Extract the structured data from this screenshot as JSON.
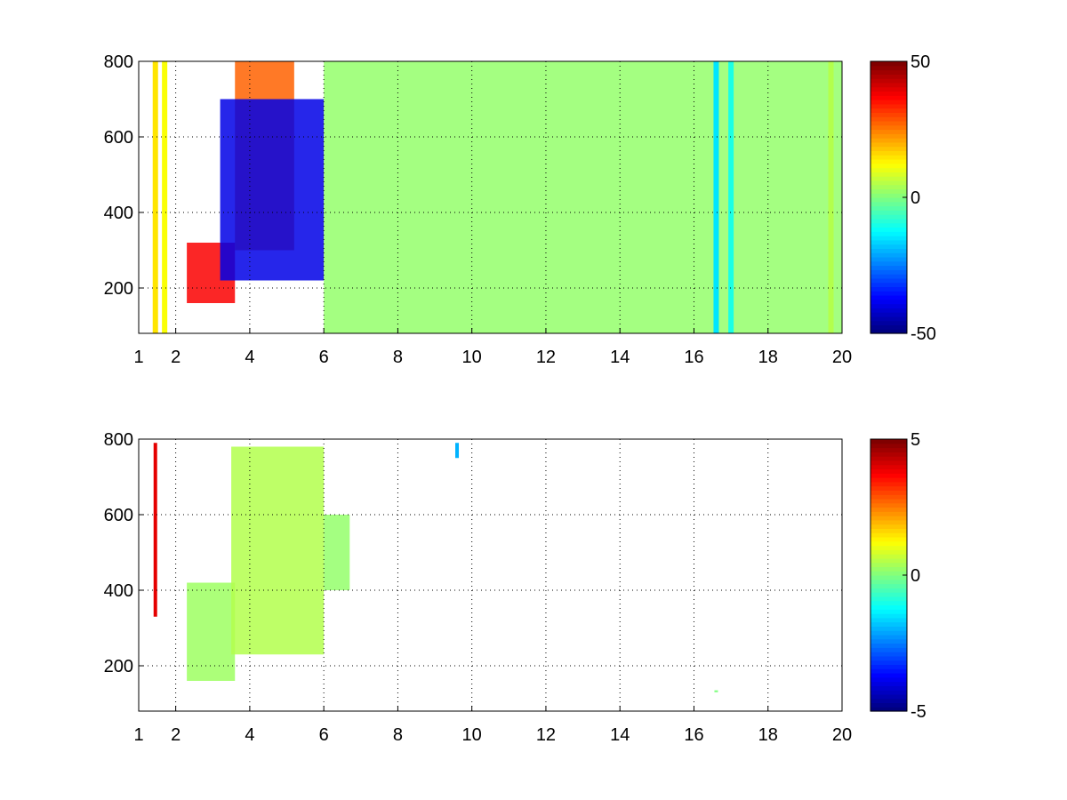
{
  "figure": {
    "background": "#ffffff"
  },
  "chart_data": [
    {
      "type": "heatmap",
      "title": "",
      "xlabel": "",
      "ylabel": "",
      "xlim": [
        1,
        20
      ],
      "ylim": [
        80,
        800
      ],
      "xticks": [
        1,
        2,
        4,
        6,
        8,
        10,
        12,
        14,
        16,
        18,
        20
      ],
      "xtick_labels": [
        "1",
        "2",
        "4",
        "6",
        "8",
        "10",
        "12",
        "14",
        "16",
        "18",
        "20"
      ],
      "yticks": [
        200,
        400,
        600,
        800
      ],
      "ytick_labels": [
        "200",
        "400",
        "600",
        "800"
      ],
      "grid": true,
      "colormap": "jet",
      "clim": [
        -50,
        50
      ],
      "colorbar_ticks": [
        -50,
        0,
        50
      ],
      "colorbar_tick_labels": [
        "-50",
        "0",
        "50"
      ],
      "regions": [
        {
          "description": "main diagonal ridge",
          "x": [
            2.3,
            3.6
          ],
          "y": [
            160,
            320
          ],
          "value": 38
        },
        {
          "description": "upper ridge block",
          "x": [
            3.6,
            5.2
          ],
          "y": [
            300,
            800
          ],
          "value": 28
        },
        {
          "description": "lower negative band",
          "x": [
            3.2,
            6.0
          ],
          "y": [
            220,
            700
          ],
          "value": -40
        },
        {
          "description": "scattered columns",
          "x": [
            6.0,
            20.0
          ],
          "y": [
            80,
            800
          ],
          "value": 2
        }
      ],
      "vertical_stripes": [
        {
          "x": 1.45,
          "y": [
            80,
            800
          ],
          "value": 15
        },
        {
          "x": 1.7,
          "y": [
            80,
            800
          ],
          "value": 12
        },
        {
          "x": 16.6,
          "y": [
            80,
            800
          ],
          "value": -15
        },
        {
          "x": 17.0,
          "y": [
            80,
            800
          ],
          "value": -10
        },
        {
          "x": 19.7,
          "y": [
            80,
            800
          ],
          "value": 5
        }
      ]
    },
    {
      "type": "heatmap",
      "title": "",
      "xlabel": "",
      "ylabel": "",
      "xlim": [
        1,
        20
      ],
      "ylim": [
        80,
        800
      ],
      "xticks": [
        1,
        2,
        4,
        6,
        8,
        10,
        12,
        14,
        16,
        18,
        20
      ],
      "xtick_labels": [
        "1",
        "2",
        "4",
        "6",
        "8",
        "10",
        "12",
        "14",
        "16",
        "18",
        "20"
      ],
      "yticks": [
        200,
        400,
        600,
        800
      ],
      "ytick_labels": [
        "200",
        "400",
        "600",
        "800"
      ],
      "grid": true,
      "colormap": "jet",
      "clim": [
        -5,
        5
      ],
      "colorbar_ticks": [
        -5,
        0,
        5
      ],
      "colorbar_tick_labels": [
        "-5",
        "0",
        "5"
      ],
      "regions": [
        {
          "description": "main diagonal ridge",
          "x": [
            2.3,
            3.6
          ],
          "y": [
            160,
            420
          ],
          "value": 0.3
        },
        {
          "description": "upper block",
          "x": [
            3.5,
            6.0
          ],
          "y": [
            230,
            780
          ],
          "value": 0.5
        },
        {
          "description": "tail",
          "x": [
            6.0,
            6.7
          ],
          "y": [
            400,
            600
          ],
          "value": 0.2
        }
      ],
      "isolated_marks": [
        {
          "x": 1.45,
          "y": [
            330,
            790
          ],
          "value": 4
        },
        {
          "x": 9.6,
          "y": [
            750,
            790
          ],
          "value": -2
        },
        {
          "x": 16.6,
          "y": [
            130,
            135
          ],
          "value": 0
        }
      ]
    }
  ]
}
